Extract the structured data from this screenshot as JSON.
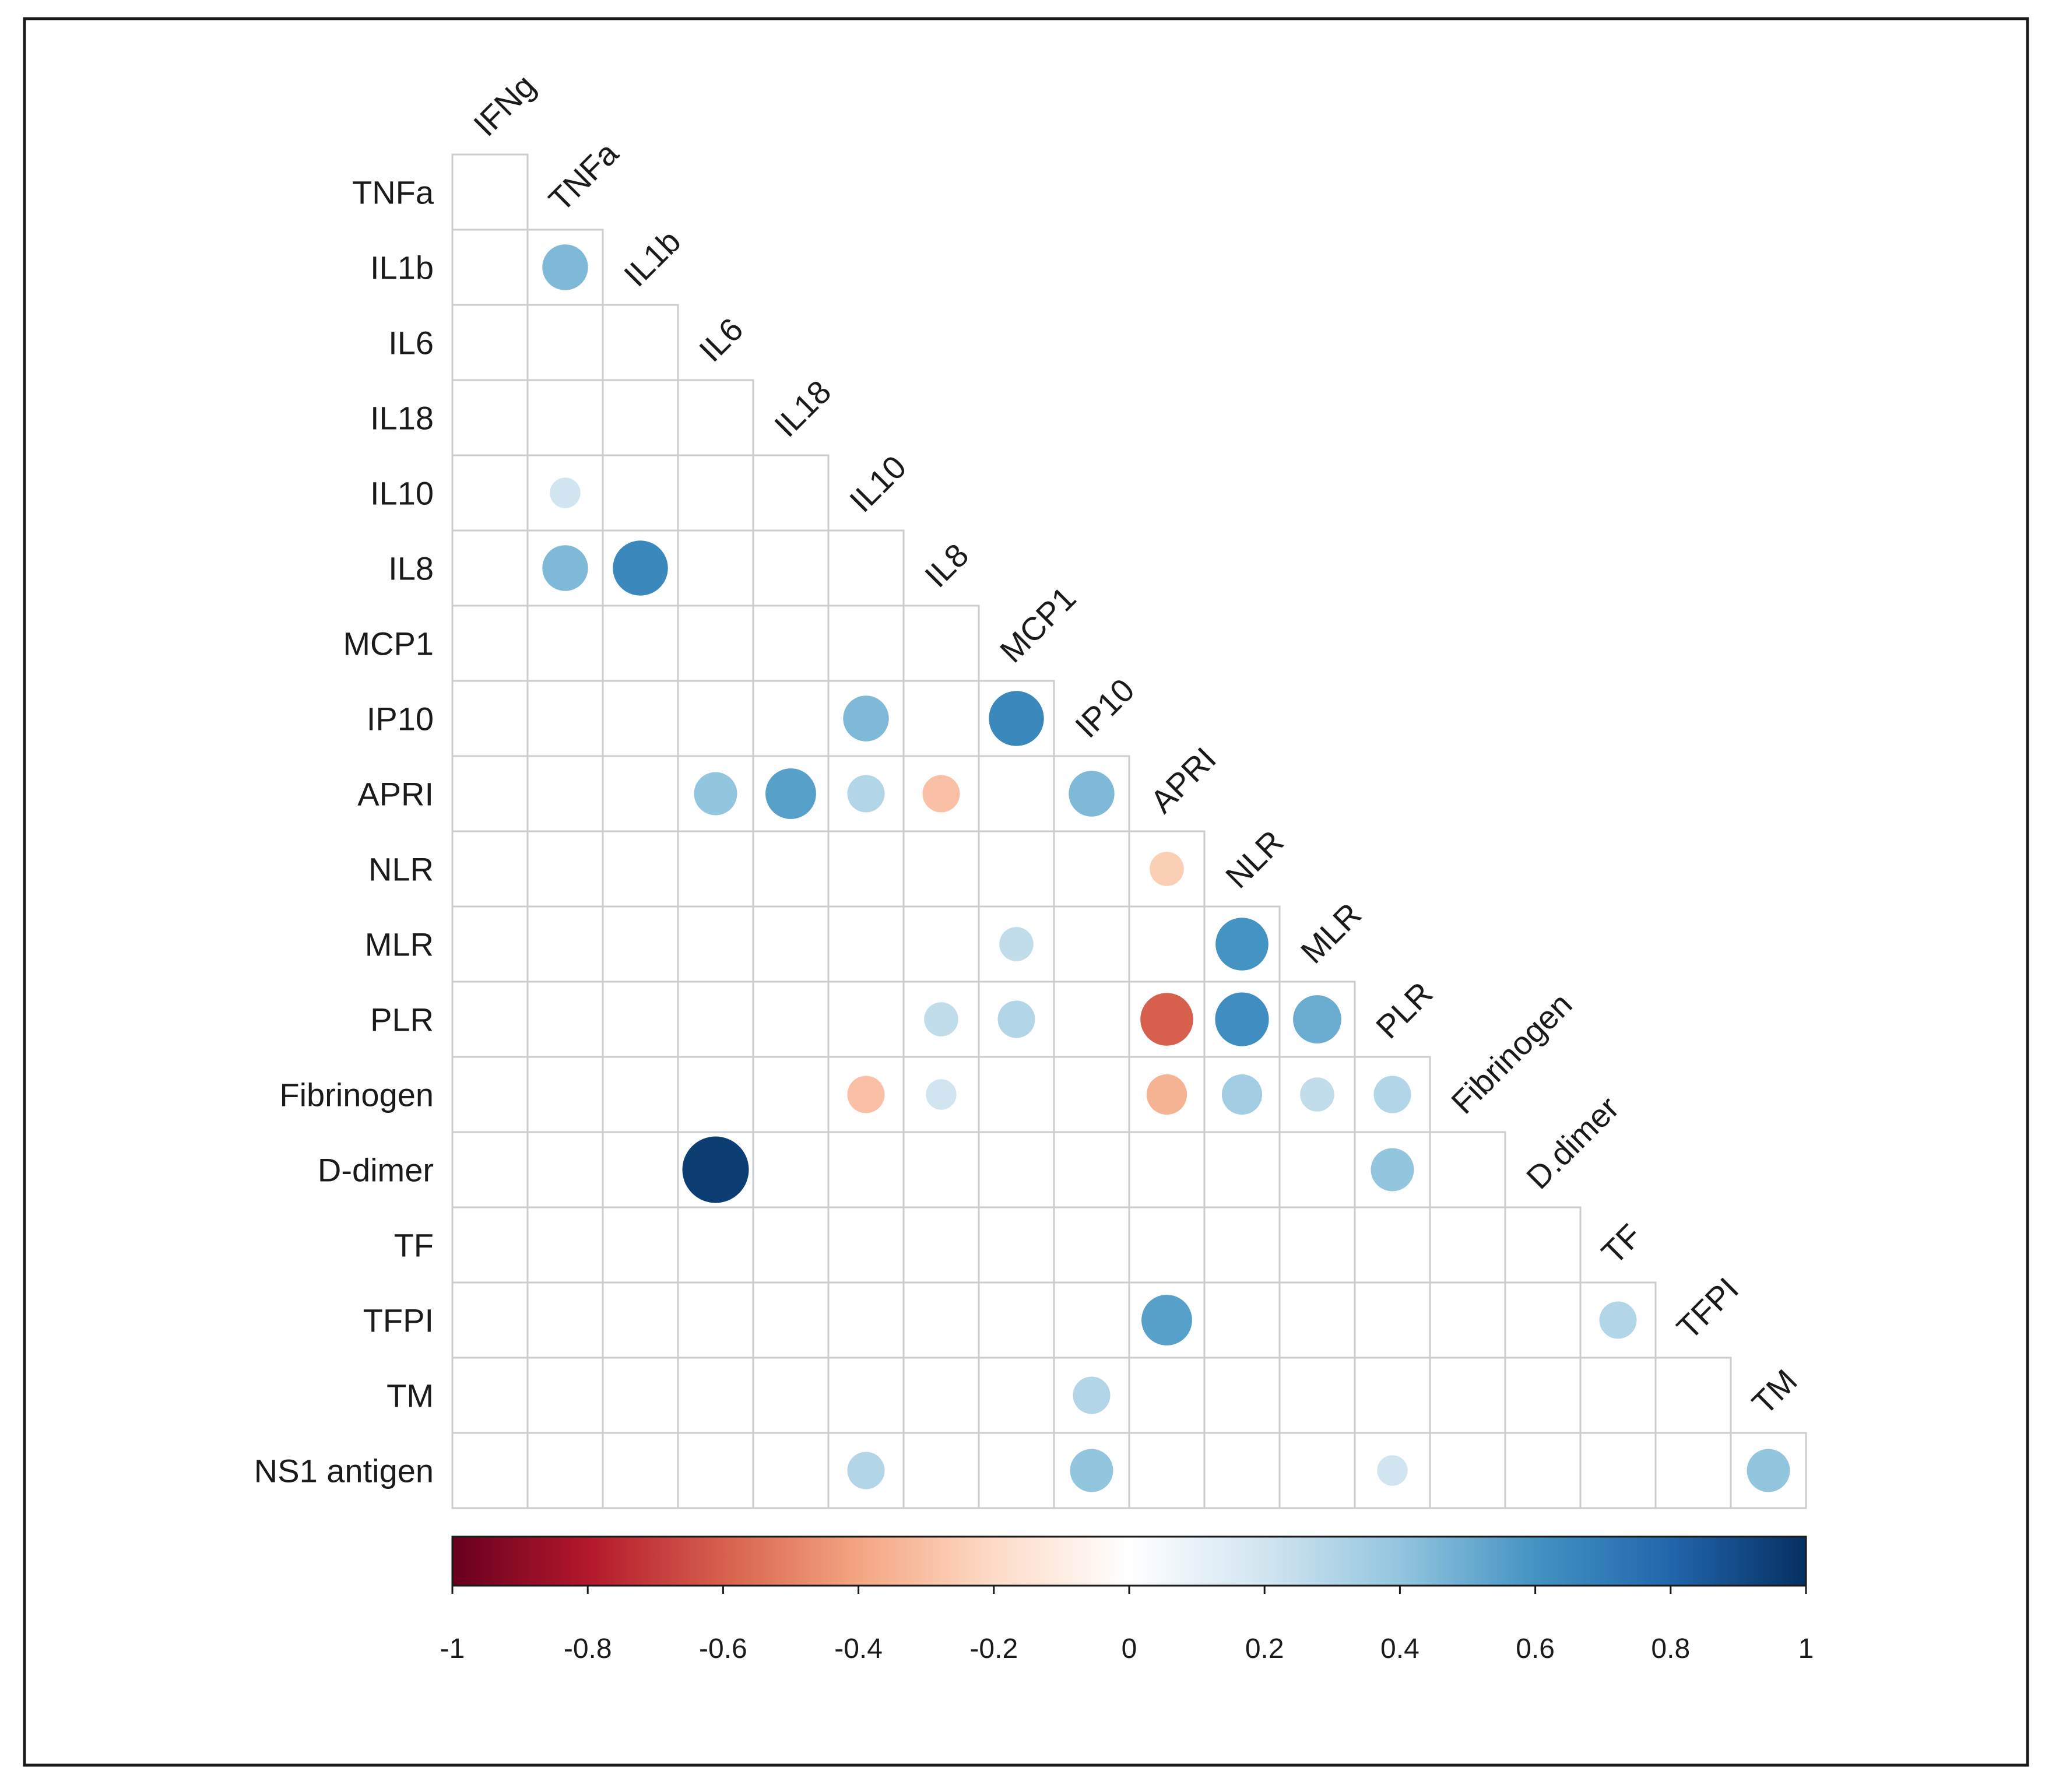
{
  "chart_data": {
    "type": "heatmap",
    "subtype": "correlation-matrix-lower-triangle-circles",
    "title": "",
    "row_labels": [
      "TNFa",
      "IL1b",
      "IL6",
      "IL18",
      "IL10",
      "IL8",
      "MCP1",
      "IP10",
      "APRI",
      "NLR",
      "MLR",
      "PLR",
      "Fibrinogen",
      "D-dimer",
      "TF",
      "TFPI",
      "TM",
      "NS1 antigen"
    ],
    "col_labels": [
      "IFNg",
      "TNFa",
      "IL1b",
      "IL6",
      "IL18",
      "IL10",
      "IL8",
      "MCP1",
      "IP10",
      "APRI",
      "NLR",
      "MLR",
      "PLR",
      "Fibrinogen",
      "D.dimer",
      "TF",
      "TFPI",
      "TM"
    ],
    "significant_correlations": [
      {
        "row": "IL1b",
        "col": "TNFa",
        "r": 0.45
      },
      {
        "row": "IL10",
        "col": "TNFa",
        "r": 0.2
      },
      {
        "row": "IL8",
        "col": "TNFa",
        "r": 0.45
      },
      {
        "row": "IL8",
        "col": "IL1b",
        "r": 0.65
      },
      {
        "row": "IP10",
        "col": "IL10",
        "r": 0.45
      },
      {
        "row": "IP10",
        "col": "MCP1",
        "r": 0.65
      },
      {
        "row": "APRI",
        "col": "IL6",
        "r": 0.4
      },
      {
        "row": "APRI",
        "col": "IL18",
        "r": 0.55
      },
      {
        "row": "APRI",
        "col": "IL10",
        "r": 0.3
      },
      {
        "row": "APRI",
        "col": "IL8",
        "r": -0.3
      },
      {
        "row": "APRI",
        "col": "IP10",
        "r": 0.45
      },
      {
        "row": "NLR",
        "col": "APRI",
        "r": -0.25
      },
      {
        "row": "MLR",
        "col": "MCP1",
        "r": 0.25
      },
      {
        "row": "MLR",
        "col": "NLR",
        "r": 0.6
      },
      {
        "row": "PLR",
        "col": "IL8",
        "r": 0.25
      },
      {
        "row": "PLR",
        "col": "MCP1",
        "r": 0.3
      },
      {
        "row": "PLR",
        "col": "APRI",
        "r": -0.6
      },
      {
        "row": "PLR",
        "col": "NLR",
        "r": 0.62
      },
      {
        "row": "PLR",
        "col": "MLR",
        "r": 0.5
      },
      {
        "row": "Fibrinogen",
        "col": "IL10",
        "r": -0.3
      },
      {
        "row": "Fibrinogen",
        "col": "IL8",
        "r": 0.2
      },
      {
        "row": "Fibrinogen",
        "col": "APRI",
        "r": -0.35
      },
      {
        "row": "Fibrinogen",
        "col": "NLR",
        "r": 0.35
      },
      {
        "row": "Fibrinogen",
        "col": "MLR",
        "r": 0.25
      },
      {
        "row": "Fibrinogen",
        "col": "PLR",
        "r": 0.3
      },
      {
        "row": "D-dimer",
        "col": "IL6",
        "r": 0.95
      },
      {
        "row": "D-dimer",
        "col": "PLR",
        "r": 0.4
      },
      {
        "row": "TFPI",
        "col": "APRI",
        "r": 0.55
      },
      {
        "row": "TFPI",
        "col": "TF",
        "r": 0.3
      },
      {
        "row": "TM",
        "col": "IP10",
        "r": 0.3
      },
      {
        "row": "NS1 antigen",
        "col": "IL10",
        "r": 0.3
      },
      {
        "row": "NS1 antigen",
        "col": "IP10",
        "r": 0.4
      },
      {
        "row": "NS1 antigen",
        "col": "PLR",
        "r": 0.2
      },
      {
        "row": "NS1 antigen",
        "col": "TM",
        "r": 0.4
      }
    ],
    "colorbar": {
      "range": [
        -1,
        1
      ],
      "ticks": [
        "-1",
        "-0.8",
        "-0.6",
        "-0.4",
        "-0.2",
        "0",
        "0.2",
        "0.4",
        "0.6",
        "0.8",
        "1"
      ],
      "colors": [
        "#67001f",
        "#b2182b",
        "#d6604d",
        "#f4a582",
        "#fddbc7",
        "#ffffff",
        "#d1e5f0",
        "#92c5de",
        "#4393c3",
        "#2166ac",
        "#053061"
      ]
    }
  }
}
